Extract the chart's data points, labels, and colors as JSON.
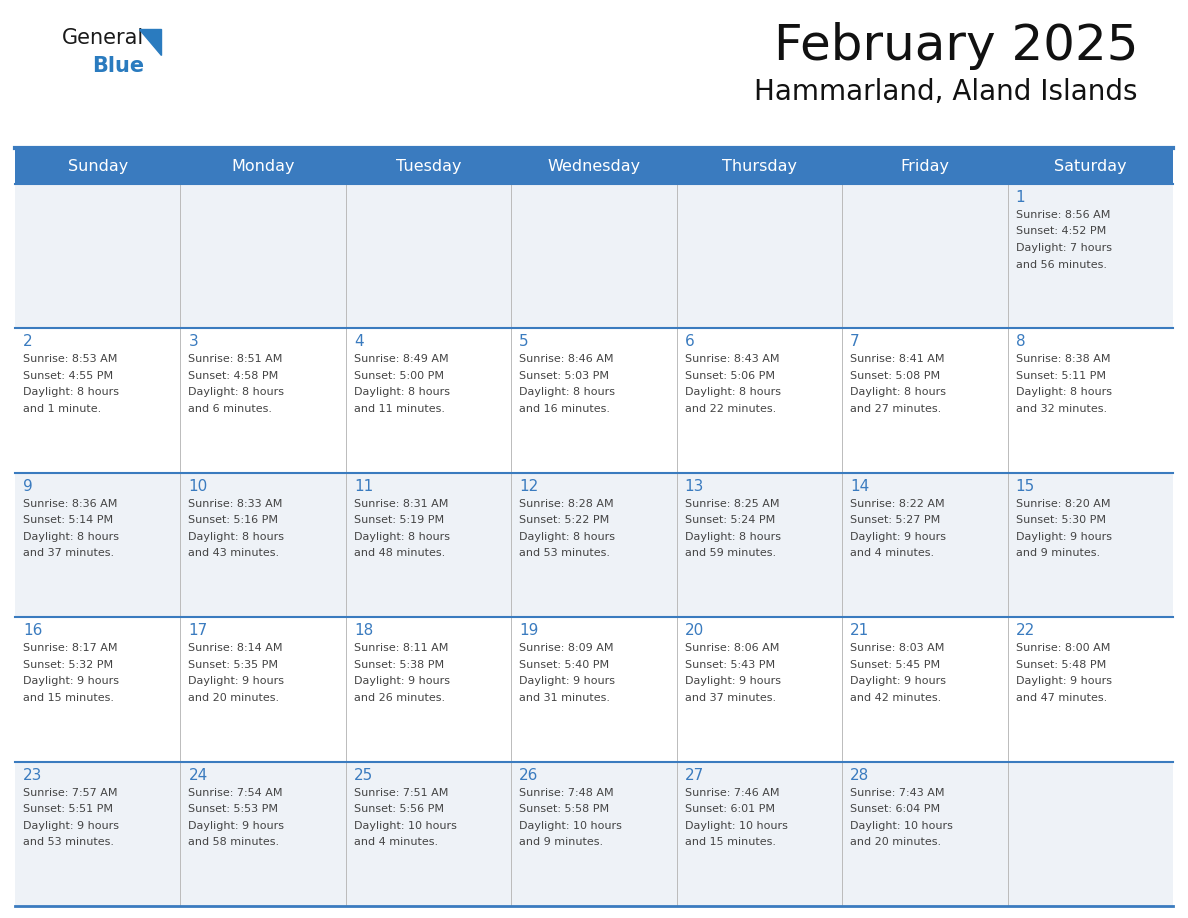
{
  "title": "February 2025",
  "subtitle": "Hammarland, Aland Islands",
  "days_of_week": [
    "Sunday",
    "Monday",
    "Tuesday",
    "Wednesday",
    "Thursday",
    "Friday",
    "Saturday"
  ],
  "header_bg": "#3a7bbf",
  "header_text": "#ffffff",
  "cell_bg_odd": "#eef2f7",
  "cell_bg_even": "#ffffff",
  "border_color": "#3a7bbf",
  "day_number_color": "#3a7bbf",
  "text_color": "#444444",
  "logo_general_color": "#1a1a1a",
  "logo_blue_color": "#2a7bbf",
  "logo_triangle_color": "#2a7bbf",
  "calendar_data": [
    [
      null,
      null,
      null,
      null,
      null,
      null,
      {
        "day": 1,
        "sunrise": "8:56 AM",
        "sunset": "4:52 PM",
        "daylight": "7 hours and 56 minutes."
      }
    ],
    [
      {
        "day": 2,
        "sunrise": "8:53 AM",
        "sunset": "4:55 PM",
        "daylight": "8 hours and 1 minute."
      },
      {
        "day": 3,
        "sunrise": "8:51 AM",
        "sunset": "4:58 PM",
        "daylight": "8 hours and 6 minutes."
      },
      {
        "day": 4,
        "sunrise": "8:49 AM",
        "sunset": "5:00 PM",
        "daylight": "8 hours and 11 minutes."
      },
      {
        "day": 5,
        "sunrise": "8:46 AM",
        "sunset": "5:03 PM",
        "daylight": "8 hours and 16 minutes."
      },
      {
        "day": 6,
        "sunrise": "8:43 AM",
        "sunset": "5:06 PM",
        "daylight": "8 hours and 22 minutes."
      },
      {
        "day": 7,
        "sunrise": "8:41 AM",
        "sunset": "5:08 PM",
        "daylight": "8 hours and 27 minutes."
      },
      {
        "day": 8,
        "sunrise": "8:38 AM",
        "sunset": "5:11 PM",
        "daylight": "8 hours and 32 minutes."
      }
    ],
    [
      {
        "day": 9,
        "sunrise": "8:36 AM",
        "sunset": "5:14 PM",
        "daylight": "8 hours and 37 minutes."
      },
      {
        "day": 10,
        "sunrise": "8:33 AM",
        "sunset": "5:16 PM",
        "daylight": "8 hours and 43 minutes."
      },
      {
        "day": 11,
        "sunrise": "8:31 AM",
        "sunset": "5:19 PM",
        "daylight": "8 hours and 48 minutes."
      },
      {
        "day": 12,
        "sunrise": "8:28 AM",
        "sunset": "5:22 PM",
        "daylight": "8 hours and 53 minutes."
      },
      {
        "day": 13,
        "sunrise": "8:25 AM",
        "sunset": "5:24 PM",
        "daylight": "8 hours and 59 minutes."
      },
      {
        "day": 14,
        "sunrise": "8:22 AM",
        "sunset": "5:27 PM",
        "daylight": "9 hours and 4 minutes."
      },
      {
        "day": 15,
        "sunrise": "8:20 AM",
        "sunset": "5:30 PM",
        "daylight": "9 hours and 9 minutes."
      }
    ],
    [
      {
        "day": 16,
        "sunrise": "8:17 AM",
        "sunset": "5:32 PM",
        "daylight": "9 hours and 15 minutes."
      },
      {
        "day": 17,
        "sunrise": "8:14 AM",
        "sunset": "5:35 PM",
        "daylight": "9 hours and 20 minutes."
      },
      {
        "day": 18,
        "sunrise": "8:11 AM",
        "sunset": "5:38 PM",
        "daylight": "9 hours and 26 minutes."
      },
      {
        "day": 19,
        "sunrise": "8:09 AM",
        "sunset": "5:40 PM",
        "daylight": "9 hours and 31 minutes."
      },
      {
        "day": 20,
        "sunrise": "8:06 AM",
        "sunset": "5:43 PM",
        "daylight": "9 hours and 37 minutes."
      },
      {
        "day": 21,
        "sunrise": "8:03 AM",
        "sunset": "5:45 PM",
        "daylight": "9 hours and 42 minutes."
      },
      {
        "day": 22,
        "sunrise": "8:00 AM",
        "sunset": "5:48 PM",
        "daylight": "9 hours and 47 minutes."
      }
    ],
    [
      {
        "day": 23,
        "sunrise": "7:57 AM",
        "sunset": "5:51 PM",
        "daylight": "9 hours and 53 minutes."
      },
      {
        "day": 24,
        "sunrise": "7:54 AM",
        "sunset": "5:53 PM",
        "daylight": "9 hours and 58 minutes."
      },
      {
        "day": 25,
        "sunrise": "7:51 AM",
        "sunset": "5:56 PM",
        "daylight": "10 hours and 4 minutes."
      },
      {
        "day": 26,
        "sunrise": "7:48 AM",
        "sunset": "5:58 PM",
        "daylight": "10 hours and 9 minutes."
      },
      {
        "day": 27,
        "sunrise": "7:46 AM",
        "sunset": "6:01 PM",
        "daylight": "10 hours and 15 minutes."
      },
      {
        "day": 28,
        "sunrise": "7:43 AM",
        "sunset": "6:04 PM",
        "daylight": "10 hours and 20 minutes."
      },
      null
    ]
  ]
}
